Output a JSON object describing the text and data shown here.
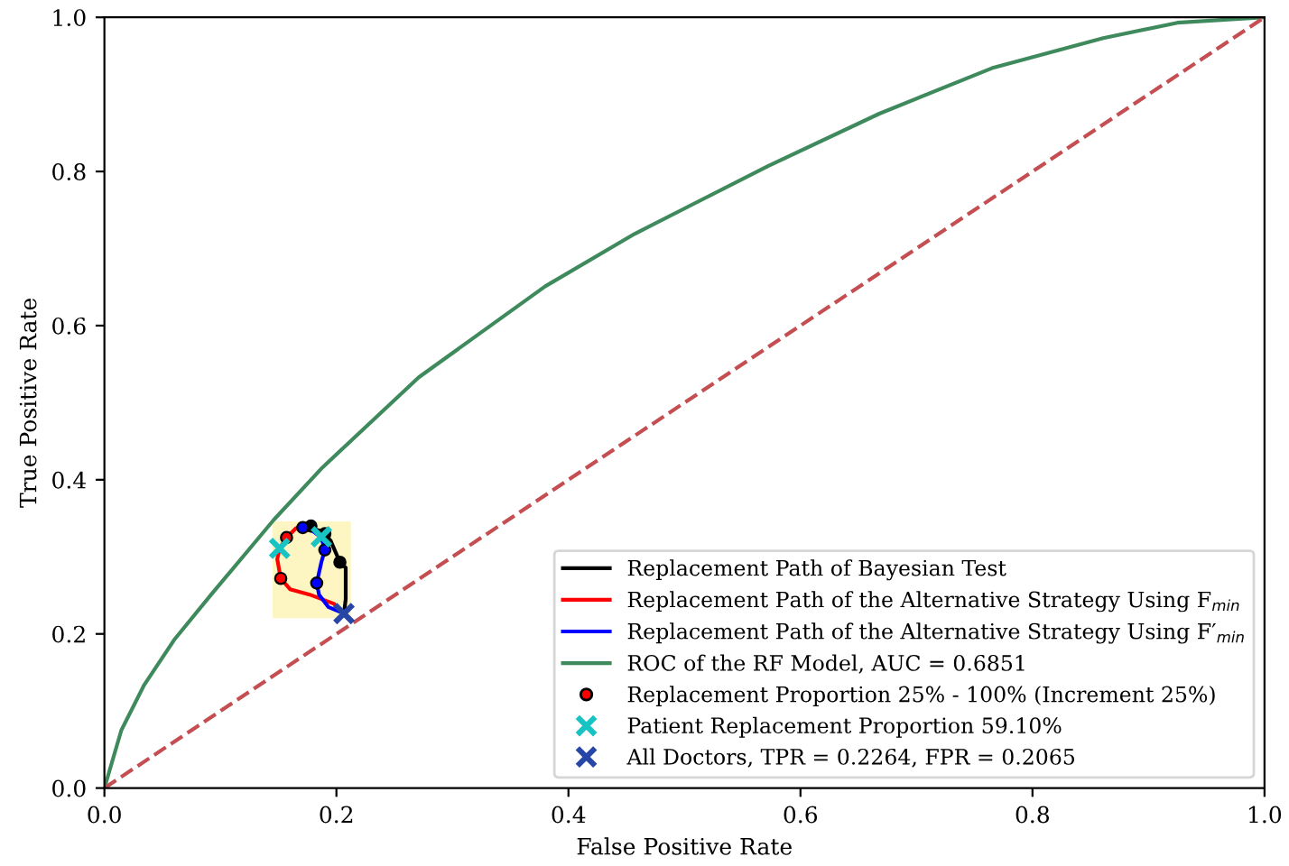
{
  "chart_data": {
    "type": "line",
    "xlabel": "False Positive Rate",
    "ylabel": "True Positive Rate",
    "xlim": [
      0,
      1
    ],
    "ylim": [
      0,
      1
    ],
    "xticks": [
      {
        "value": 0,
        "label": "0.0"
      },
      0.2,
      0.4,
      0.6,
      0.8,
      {
        "value": 1,
        "label": "1.0"
      }
    ],
    "yticks": [
      {
        "value": 0,
        "label": "0.0"
      },
      0.2,
      0.4,
      0.6,
      0.8,
      {
        "value": 1,
        "label": "1.0"
      }
    ],
    "grid": false,
    "legend": "bottom right",
    "series": [
      {
        "name": "Replacement Path of Bayesian Test",
        "color": "#000000",
        "x": [
          0.2065,
          0.208,
          0.208,
          0.203,
          0.195,
          0.188,
          0.17
        ],
        "values": [
          0.2264,
          0.245,
          0.286,
          0.293,
          0.321,
          0.333,
          0.34
        ]
      },
      {
        "name": "Replacement Path of the Alternative Strategy Using F$_{min}$",
        "color": "#ff0000",
        "x": [
          0.2065,
          0.198,
          0.177,
          0.16,
          0.152,
          0.149,
          0.151,
          0.157,
          0.165,
          0.17
        ],
        "values": [
          0.2264,
          0.239,
          0.251,
          0.258,
          0.272,
          0.297,
          0.311,
          0.325,
          0.337,
          0.34
        ]
      },
      {
        "name": "Replacement Path of the Alternative Strategy Using F′$_{min}$",
        "color": "#0000ff",
        "x": [
          0.2065,
          0.193,
          0.185,
          0.183,
          0.187,
          0.19,
          0.187,
          0.18,
          0.171
        ],
        "values": [
          0.2264,
          0.235,
          0.251,
          0.266,
          0.293,
          0.309,
          0.325,
          0.333,
          0.338
        ]
      },
      {
        "name": "ROC of the RF Model, AUC = 0.6851",
        "color": "#3f8a5c",
        "x": [
          0,
          0.0146,
          0.034,
          0.06,
          0.092,
          0.146,
          0.188,
          0.271,
          0.38,
          0.457,
          0.572,
          0.668,
          0.765,
          0.861,
          0.925,
          1
        ],
        "values": [
          0,
          0.075,
          0.133,
          0.192,
          0.251,
          0.348,
          0.416,
          0.533,
          0.651,
          0.719,
          0.807,
          0.875,
          0.934,
          0.973,
          0.993,
          1
        ]
      },
      {
        "color": "#c44e52",
        "line_style": "dashed",
        "x": [
          0,
          1
        ],
        "values": [
          0,
          1
        ]
      },
      {
        "name": "Replacement Proportion 25% - 100% (Increment 25%)",
        "type": "scatter",
        "marker": "circle",
        "color": "#ff0000",
        "colors": [
          "#ff0000",
          "#ff0000",
          "#000000",
          "#000000",
          "#000000",
          "#0000ff",
          "#0000ff",
          "#0000ff"
        ],
        "x": [
          0.152,
          0.157,
          0.203,
          0.19,
          0.178,
          0.183,
          0.19,
          0.171
        ],
        "values": [
          0.272,
          0.325,
          0.293,
          0.33,
          0.34,
          0.266,
          0.309,
          0.338
        ]
      },
      {
        "name": "Patient Replacement Proportion 59.10%",
        "type": "scatter",
        "marker": "cross",
        "color": "#17c3c3",
        "x": [
          0.151,
          0.187
        ],
        "values": [
          0.311,
          0.326
        ]
      },
      {
        "name": "All Doctors, TPR = 0.2264, FPR = 0.2065",
        "type": "scatter",
        "marker": "cross",
        "color": "#2846a6",
        "x": [
          0.2065
        ],
        "values": [
          0.2264
        ]
      }
    ]
  }
}
